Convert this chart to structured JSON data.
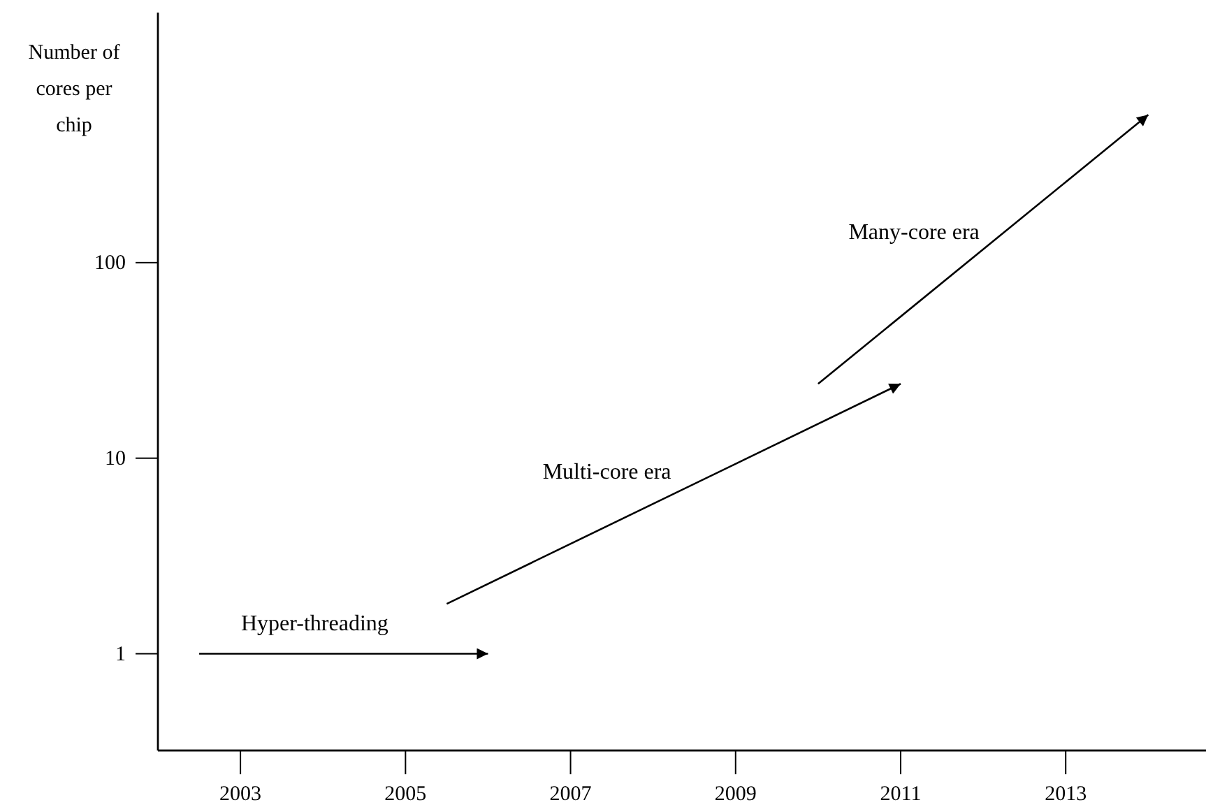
{
  "chart_data": {
    "type": "line",
    "ylabel": "Number of cores per chip",
    "log": true,
    "xlim": [
      2002,
      2014.7
    ],
    "ylim": [
      0.32,
      1900
    ],
    "xticks": [
      2003,
      2005,
      2007,
      2009,
      2011,
      2013
    ],
    "yticks": [
      1,
      10,
      100
    ],
    "series": [
      {
        "color": "#000000",
        "x": [
          2002.5,
          2006
        ],
        "values": [
          1,
          1
        ]
      },
      {
        "color": "#000000",
        "x": [
          2005.5,
          2011
        ],
        "values": [
          1.8,
          24
        ]
      },
      {
        "color": "#000000",
        "x": [
          2010,
          2014
        ],
        "values": [
          24,
          570
        ]
      }
    ],
    "annotations": [
      "Hyper-threading",
      "Multi-core era",
      "Many-core era"
    ]
  }
}
